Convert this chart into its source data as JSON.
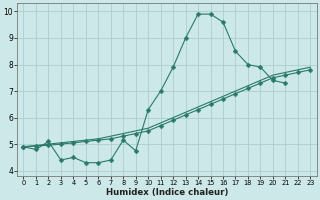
{
  "x_main": [
    0,
    1,
    2,
    3,
    4,
    5,
    6,
    7,
    8,
    9,
    10,
    11,
    12,
    13,
    14,
    15,
    16,
    17,
    18,
    19,
    20,
    21,
    22,
    23
  ],
  "y_main": [
    4.9,
    4.8,
    5.1,
    4.4,
    4.5,
    4.3,
    4.3,
    4.4,
    5.15,
    4.75,
    6.3,
    7.0,
    7.9,
    9.0,
    9.9,
    9.9,
    9.6,
    8.5,
    8.0,
    7.9,
    7.4,
    7.3,
    null,
    null
  ],
  "x_line2": [
    0,
    1,
    2,
    3,
    4,
    5,
    6,
    7,
    8,
    9,
    10,
    11,
    12,
    13,
    14,
    15,
    16,
    17,
    18,
    19,
    20,
    21,
    22,
    23
  ],
  "y_line2": [
    4.9,
    4.95,
    5.0,
    5.05,
    5.1,
    5.15,
    5.2,
    5.3,
    5.4,
    5.5,
    5.6,
    5.8,
    6.0,
    6.2,
    6.4,
    6.6,
    6.8,
    7.0,
    7.2,
    7.4,
    7.6,
    7.7,
    7.8,
    7.9
  ],
  "x_line3": [
    0,
    1,
    2,
    3,
    4,
    5,
    6,
    7,
    8,
    9,
    10,
    11,
    12,
    13,
    14,
    15,
    16,
    17,
    18,
    19,
    20,
    21,
    22,
    23
  ],
  "y_line3": [
    4.9,
    4.93,
    4.96,
    5.0,
    5.05,
    5.1,
    5.15,
    5.2,
    5.3,
    5.4,
    5.5,
    5.7,
    5.9,
    6.1,
    6.3,
    6.5,
    6.7,
    6.9,
    7.1,
    7.3,
    7.5,
    7.6,
    7.7,
    7.8
  ],
  "xlim": [
    -0.5,
    23.5
  ],
  "ylim": [
    3.8,
    10.3
  ],
  "yticks": [
    4,
    5,
    6,
    7,
    8,
    9,
    10
  ],
  "xticks": [
    0,
    1,
    2,
    3,
    4,
    5,
    6,
    7,
    8,
    9,
    10,
    11,
    12,
    13,
    14,
    15,
    16,
    17,
    18,
    19,
    20,
    21,
    22,
    23
  ],
  "xlabel": "Humidex (Indice chaleur)",
  "bg_color": "#cce8e8",
  "grid_color": "#aecece",
  "line_color": "#2a7a6a",
  "marker": "D",
  "markersize": 2.5
}
